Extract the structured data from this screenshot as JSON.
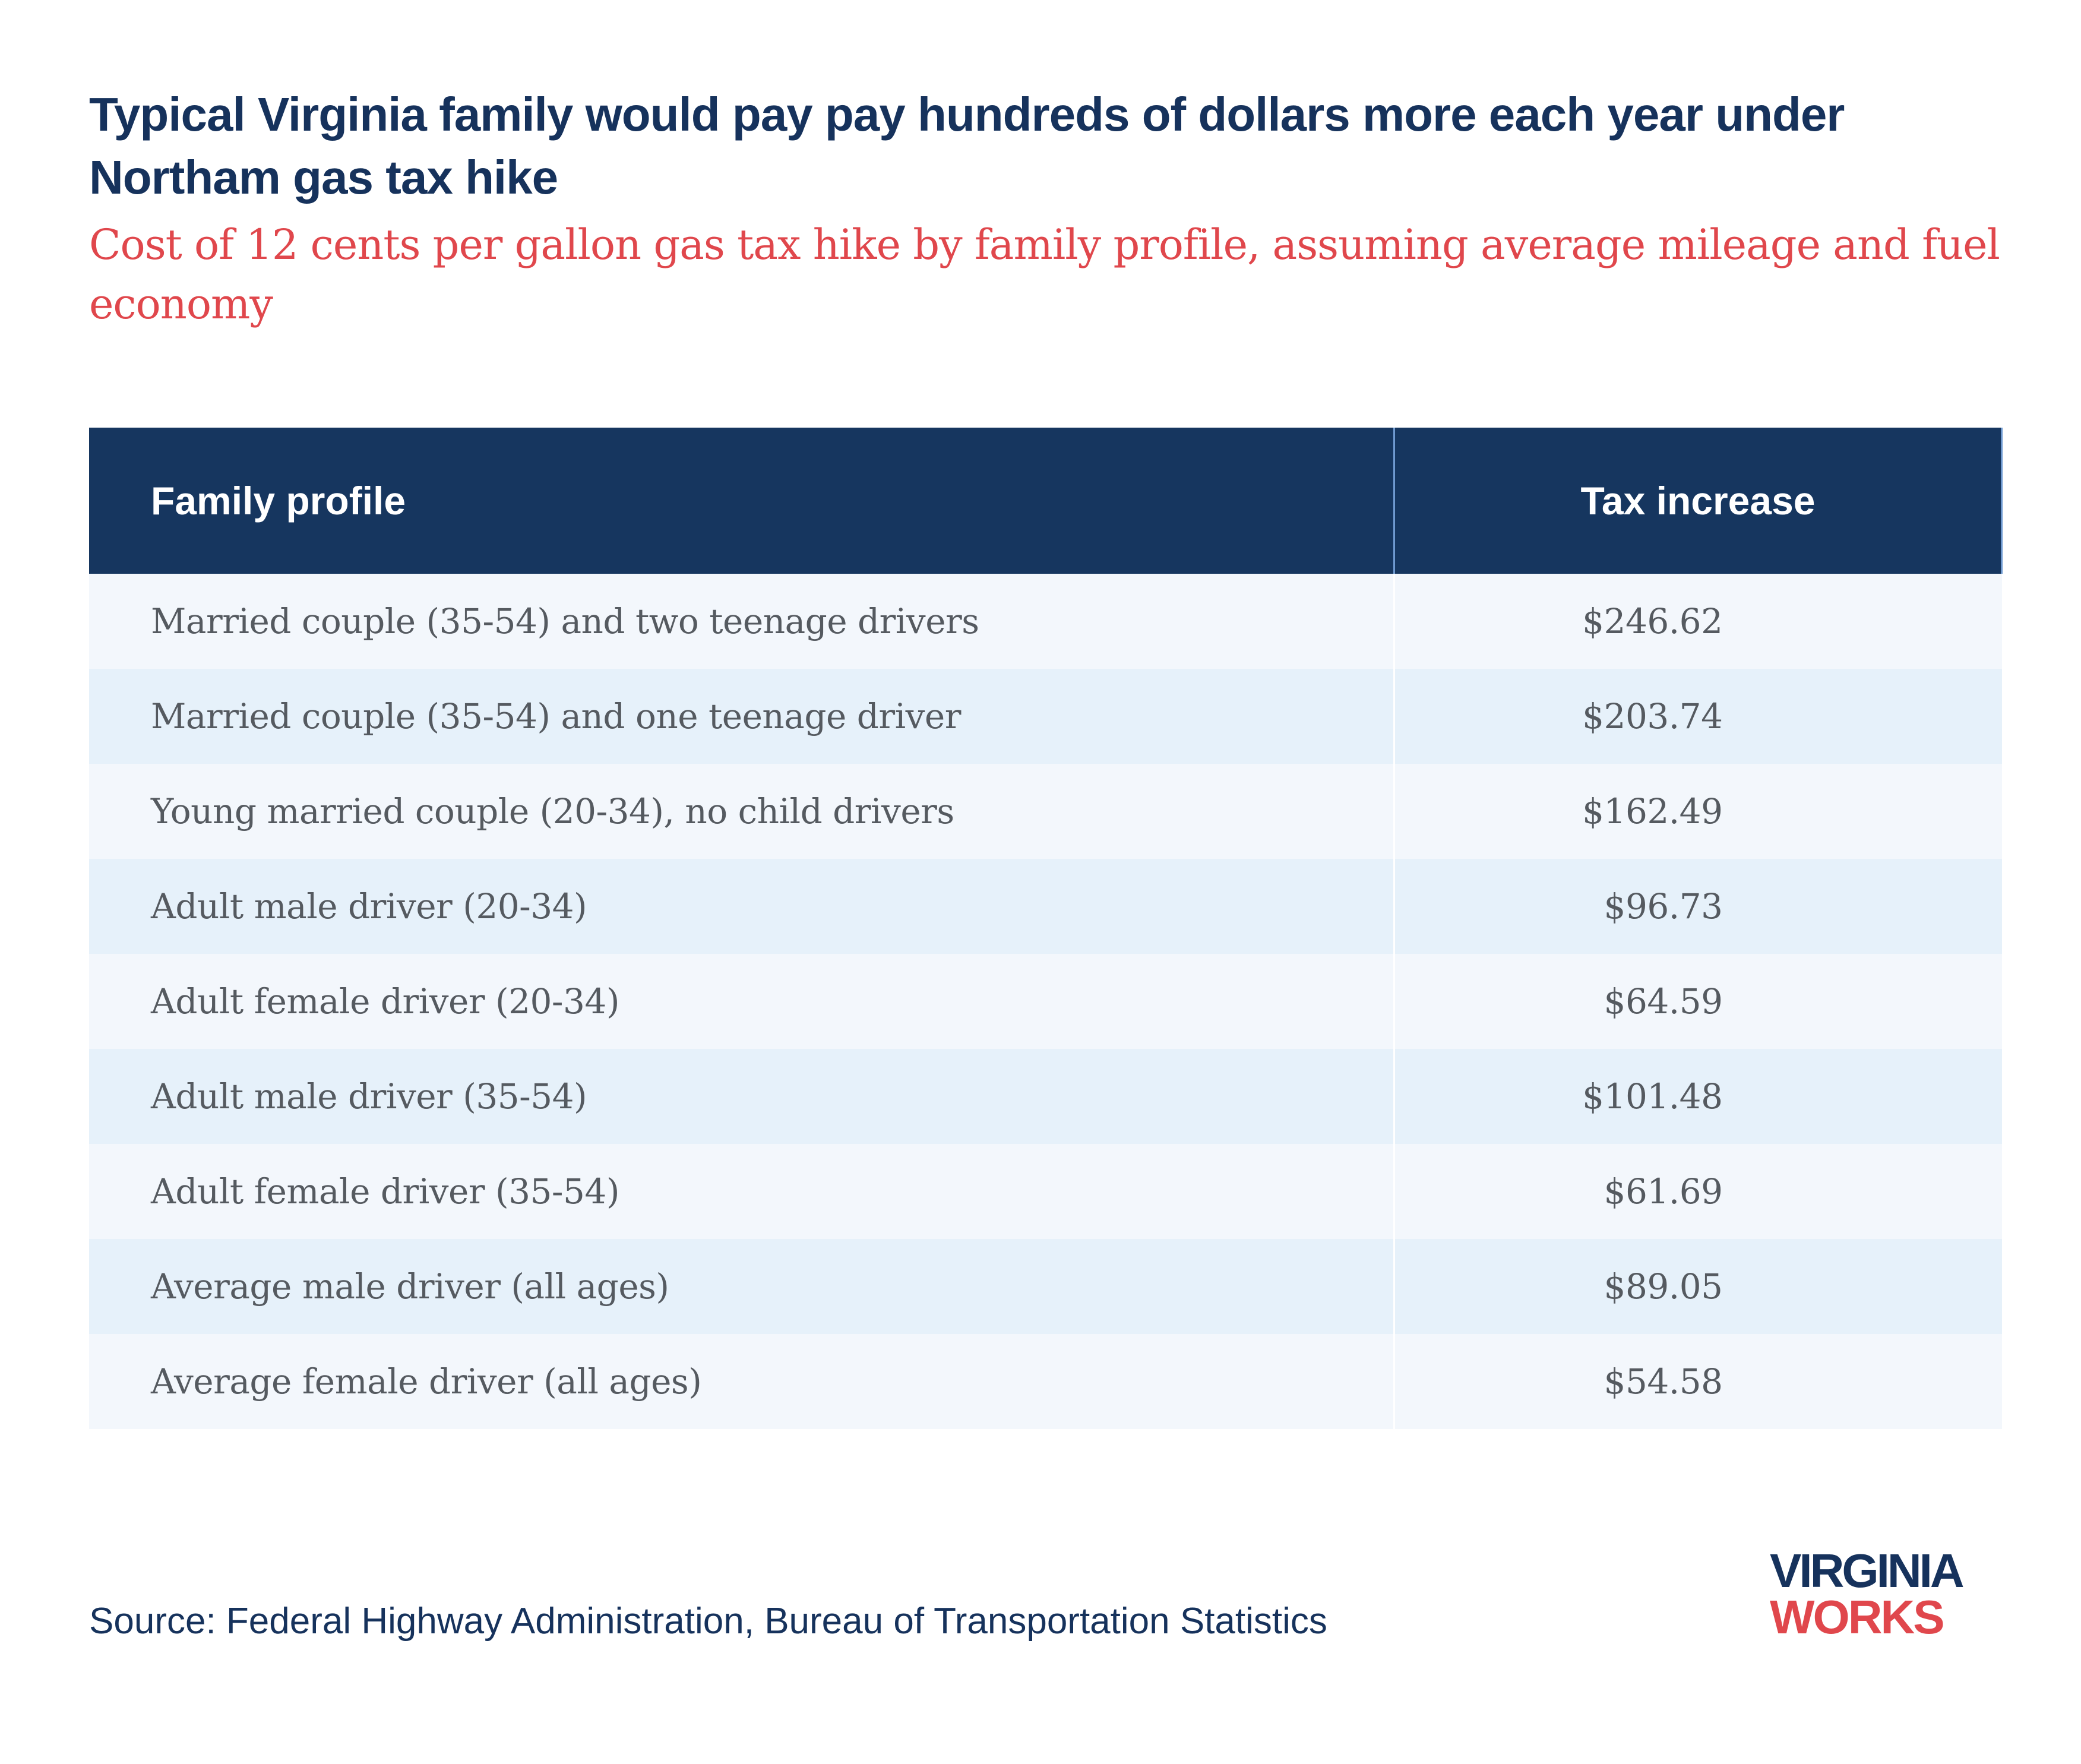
{
  "title": "Typical Virginia family would pay pay hundreds of dollars more each year under Northam gas tax hike",
  "subtitle": "Cost of 12 cents per gallon gas tax hike by family profile, assuming average mileage and fuel economy",
  "source": "Source: Federal Highway Administration, Bureau of Transportation Statistics",
  "logo": {
    "line1": "VIRGINIA",
    "line2": "WORKS"
  },
  "colors": {
    "header_bg": "#16365f",
    "title": "#16325c",
    "subtitle": "#e0474c",
    "row_light": "#f3f7fc",
    "row_alt": "#e6f1fa"
  },
  "chart_data": {
    "type": "table",
    "title": "Typical Virginia family would pay pay hundreds of dollars more each year under Northam gas tax hike",
    "subtitle": "Cost of 12 cents per gallon gas tax hike by family profile, assuming average mileage and fuel economy",
    "columns": [
      "Family profile",
      "Tax increase"
    ],
    "rows": [
      {
        "profile": "Married couple (35-54) and two teenage drivers",
        "tax": "$246.62"
      },
      {
        "profile": "Married couple (35-54) and one teenage driver",
        "tax": "$203.74"
      },
      {
        "profile": "Young married couple (20-34), no child drivers",
        "tax": "$162.49"
      },
      {
        "profile": "Adult male driver (20-34)",
        "tax": "$96.73"
      },
      {
        "profile": "Adult female driver (20-34)",
        "tax": "$64.59"
      },
      {
        "profile": "Adult male driver (35-54)",
        "tax": "$101.48"
      },
      {
        "profile": "Adult female driver (35-54)",
        "tax": "$61.69"
      },
      {
        "profile": "Average male driver (all ages)",
        "tax": "$89.05"
      },
      {
        "profile": "Average female driver (all ages)",
        "tax": "$54.58"
      }
    ]
  }
}
